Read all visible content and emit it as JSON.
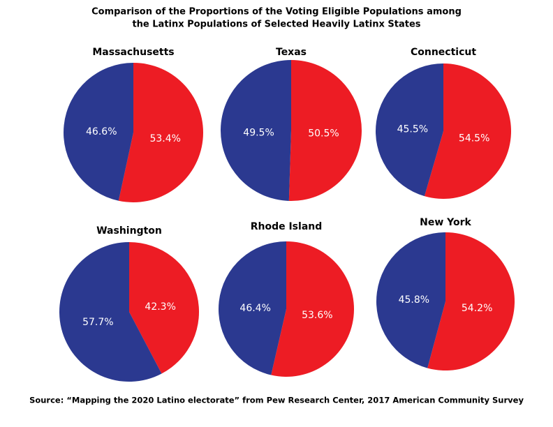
{
  "title": "Comparison of the Proportions of the Voting Eligible Populations among",
  "subtitle": "the Latinx Populations of Selected Heavily Latinx States",
  "source": "Source: “Mapping the 2020 Latino electorate” from Pew Research Center, 2017 American Community Survey",
  "chart_data": [
    {
      "type": "pie",
      "title": "Massachusetts",
      "values": [
        53.4,
        46.6
      ],
      "value_labels": [
        "53.4%",
        "46.6%"
      ],
      "colors": [
        "#ed1c24",
        "#2b3990"
      ]
    },
    {
      "type": "pie",
      "title": "Texas",
      "values": [
        50.5,
        49.5
      ],
      "value_labels": [
        "50.5%",
        "49.5%"
      ],
      "colors": [
        "#ed1c24",
        "#2b3990"
      ]
    },
    {
      "type": "pie",
      "title": "Connecticut",
      "values": [
        54.5,
        45.5
      ],
      "value_labels": [
        "54.5%",
        "45.5%"
      ],
      "colors": [
        "#ed1c24",
        "#2b3990"
      ]
    },
    {
      "type": "pie",
      "title": "Washington",
      "values": [
        42.3,
        57.7
      ],
      "value_labels": [
        "42.3%",
        "57.7%"
      ],
      "colors": [
        "#ed1c24",
        "#2b3990"
      ]
    },
    {
      "type": "pie",
      "title": "Rhode Island",
      "values": [
        53.6,
        46.4
      ],
      "value_labels": [
        "53.6%",
        "46.4%"
      ],
      "colors": [
        "#ed1c24",
        "#2b3990"
      ]
    },
    {
      "type": "pie",
      "title": "New York",
      "values": [
        54.2,
        45.8
      ],
      "value_labels": [
        "54.2%",
        "45.8%"
      ],
      "colors": [
        "#ed1c24",
        "#2b3990"
      ]
    }
  ]
}
